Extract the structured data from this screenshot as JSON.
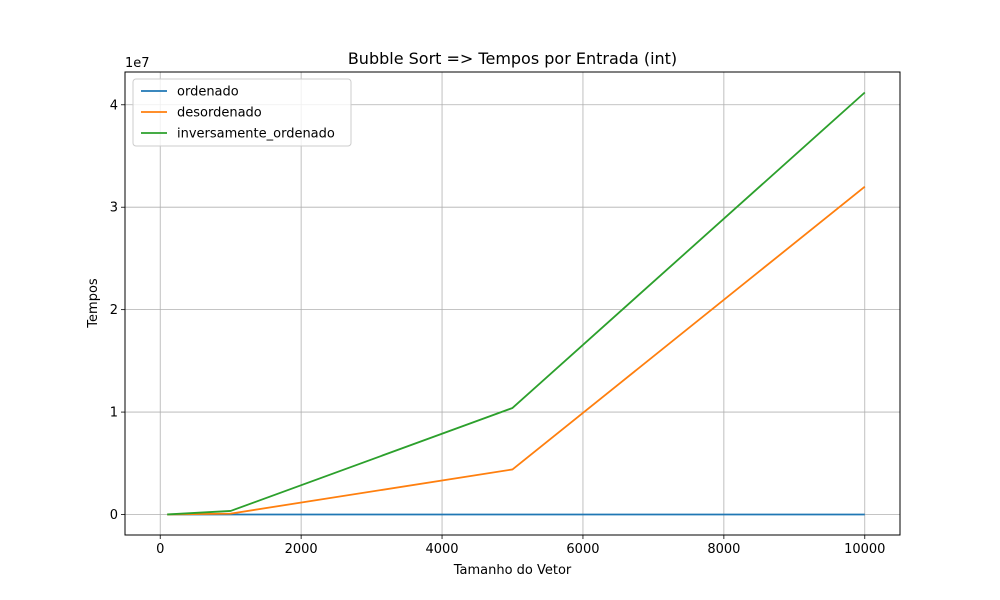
{
  "chart_data": {
    "type": "line",
    "title": "Bubble Sort => Tempos por Entrada (int)",
    "xlabel": "Tamanho do Vetor",
    "ylabel": "Tempos",
    "y_offset_text": "1e7",
    "xlim": [
      -500,
      10500
    ],
    "ylim": [
      -2000000,
      43200000
    ],
    "x_ticks": [
      0,
      2000,
      4000,
      6000,
      8000,
      10000
    ],
    "x_tick_labels": [
      "0",
      "2000",
      "4000",
      "6000",
      "8000",
      "10000"
    ],
    "y_ticks": [
      0,
      10000000,
      20000000,
      30000000,
      40000000
    ],
    "y_tick_labels": [
      "0",
      "1",
      "2",
      "3",
      "4"
    ],
    "grid": true,
    "legend_position": "top-left",
    "x": [
      100,
      1000,
      5000,
      10000
    ],
    "series": [
      {
        "name": "ordenado",
        "color": "#1f77b4",
        "values": [
          0,
          0,
          0,
          0
        ]
      },
      {
        "name": "desordenado",
        "color": "#ff7f0e",
        "values": [
          5000,
          90000,
          4400000,
          32000000
        ]
      },
      {
        "name": "inversamente_ordenado",
        "color": "#2ca02c",
        "values": [
          6000,
          350000,
          10400000,
          41200000
        ]
      }
    ]
  }
}
